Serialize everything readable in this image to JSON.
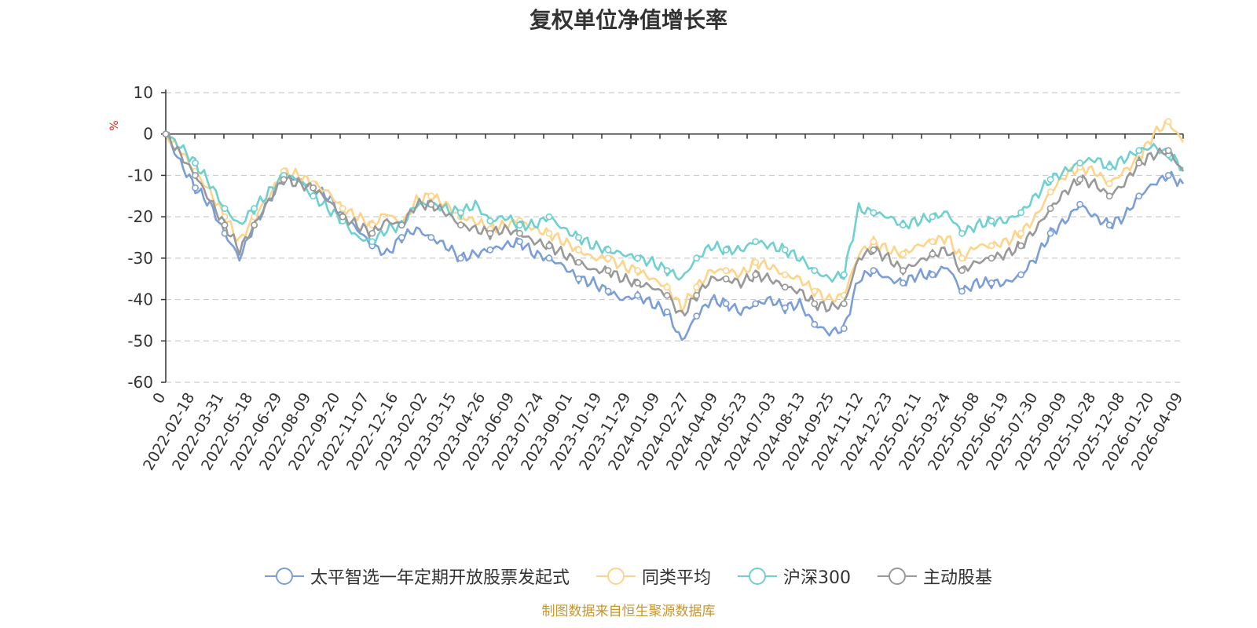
{
  "chart_data": {
    "type": "line",
    "title": "复权单位净值增长率",
    "ylabel": "%",
    "ylim": [
      -60,
      10
    ],
    "yticks": [
      10,
      0,
      -10,
      -20,
      -30,
      -40,
      -50,
      -60
    ],
    "grid": true,
    "x_tick_labels": [
      "0",
      "2022-02-18",
      "2022-03-31",
      "2022-05-18",
      "2022-06-29",
      "2022-08-09",
      "2022-09-20",
      "2022-11-07",
      "2022-12-16",
      "2023-02-02",
      "2023-03-15",
      "2023-04-26",
      "2023-06-09",
      "2023-07-24",
      "2023-09-01",
      "2023-10-19",
      "2023-11-29",
      "2024-01-09",
      "2024-02-27",
      "2024-04-09",
      "2024-05-23",
      "2024-07-03",
      "2024-08-13",
      "2024-09-25",
      "2024-11-12",
      "2024-12-23",
      "2025-02-11",
      "2025-03-24",
      "2025-05-08",
      "2025-06-19",
      "2025-07-30",
      "2025-09-09",
      "2025-10-28",
      "2025-12-08",
      "2026-01-20",
      "2026-04-09"
    ],
    "series": [
      {
        "name": "太平智选一年定期开放股票发起式",
        "color": "#7b9ed6",
        "values": [
          0,
          -7,
          -13,
          -17,
          -24,
          -30,
          -22,
          -16,
          -10,
          -11,
          -13,
          -15,
          -20,
          -23,
          -27,
          -29,
          -25,
          -23,
          -25,
          -27,
          -30,
          -29,
          -28,
          -27,
          -26,
          -29,
          -30,
          -32,
          -35,
          -36,
          -38,
          -40,
          -39,
          -41,
          -43,
          -50,
          -44,
          -40,
          -41,
          -43,
          -41,
          -40,
          -42,
          -41,
          -46,
          -48,
          -47,
          -35,
          -33,
          -35,
          -36,
          -34,
          -34,
          -32,
          -38,
          -36,
          -36,
          -36,
          -34,
          -30,
          -24,
          -21,
          -17,
          -20,
          -22,
          -20,
          -15,
          -12,
          -10,
          -12
        ]
      },
      {
        "name": "同类平均",
        "color": "#fdd48a",
        "values": [
          0,
          -4,
          -9,
          -14,
          -20,
          -26,
          -20,
          -15,
          -9,
          -10,
          -12,
          -14,
          -18,
          -20,
          -22,
          -19,
          -22,
          -16,
          -15,
          -17,
          -20,
          -21,
          -23,
          -22,
          -21,
          -23,
          -24,
          -26,
          -28,
          -30,
          -30,
          -32,
          -33,
          -35,
          -37,
          -42,
          -37,
          -33,
          -33,
          -34,
          -31,
          -32,
          -34,
          -35,
          -38,
          -40,
          -39,
          -29,
          -26,
          -28,
          -29,
          -27,
          -26,
          -25,
          -30,
          -27,
          -27,
          -26,
          -24,
          -20,
          -14,
          -10,
          -8,
          -9,
          -12,
          -9,
          -6,
          0,
          3,
          -2
        ]
      },
      {
        "name": "沪深300",
        "color": "#6fd0cf",
        "values": [
          0,
          -3,
          -7,
          -12,
          -18,
          -22,
          -18,
          -14,
          -10,
          -11,
          -15,
          -18,
          -21,
          -25,
          -26,
          -23,
          -22,
          -17,
          -17,
          -18,
          -19,
          -17,
          -21,
          -20,
          -22,
          -22,
          -20,
          -23,
          -25,
          -27,
          -28,
          -29,
          -30,
          -31,
          -33,
          -35,
          -30,
          -27,
          -28,
          -28,
          -26,
          -27,
          -28,
          -30,
          -33,
          -35,
          -34,
          -18,
          -19,
          -20,
          -22,
          -21,
          -20,
          -19,
          -24,
          -22,
          -21,
          -21,
          -19,
          -15,
          -11,
          -9,
          -7,
          -6,
          -8,
          -6,
          -4,
          -3,
          -5,
          -8
        ]
      },
      {
        "name": "主动股基",
        "color": "#999999",
        "values": [
          0,
          -5,
          -10,
          -16,
          -22,
          -28,
          -22,
          -16,
          -11,
          -12,
          -13,
          -16,
          -20,
          -22,
          -24,
          -21,
          -22,
          -17,
          -17,
          -19,
          -22,
          -23,
          -24,
          -23,
          -24,
          -26,
          -27,
          -29,
          -31,
          -33,
          -33,
          -35,
          -36,
          -37,
          -39,
          -44,
          -39,
          -35,
          -35,
          -36,
          -34,
          -35,
          -37,
          -38,
          -41,
          -42,
          -41,
          -30,
          -28,
          -30,
          -33,
          -31,
          -29,
          -28,
          -33,
          -31,
          -30,
          -29,
          -27,
          -23,
          -18,
          -14,
          -11,
          -12,
          -15,
          -12,
          -7,
          -5,
          -4,
          -9
        ]
      }
    ]
  },
  "legend": {
    "items": [
      {
        "label": "太平智选一年定期开放股票发起式"
      },
      {
        "label": "同类平均"
      },
      {
        "label": "沪深300"
      },
      {
        "label": "主动股基"
      }
    ]
  },
  "footer": {
    "source": "制图数据来自恒生聚源数据库"
  }
}
